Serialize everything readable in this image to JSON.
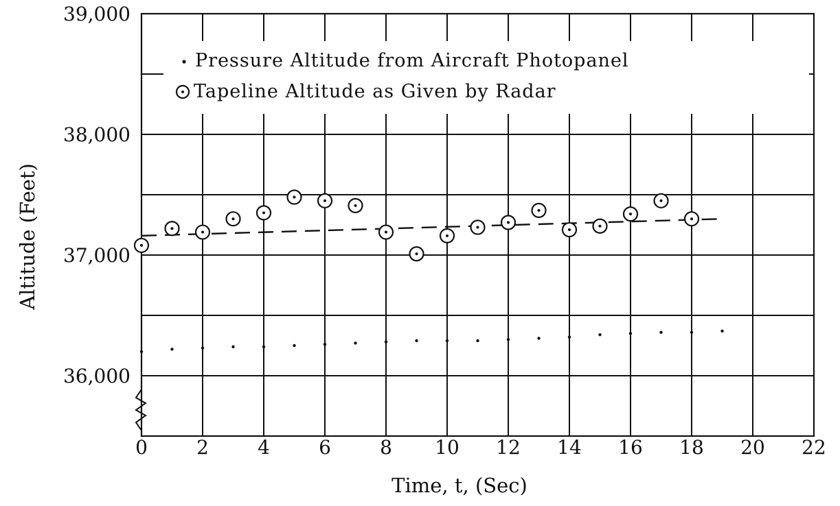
{
  "chart_data": {
    "type": "scatter",
    "xlabel": "Time, t, (Sec)",
    "ylabel": "Altitude (Feet)",
    "xlim": [
      0,
      22
    ],
    "ylim": [
      35500,
      39000
    ],
    "x_ticks": [
      "0",
      "2",
      "4",
      "6",
      "8",
      "10",
      "12",
      "14",
      "16",
      "18",
      "20",
      "22"
    ],
    "y_ticks": [
      "36,000",
      "37,000",
      "38,000",
      "39,000"
    ],
    "grid": true,
    "legend_position": "top",
    "legend": [
      {
        "marker": ".",
        "label": "Pressure Altitude from Aircraft Photopanel"
      },
      {
        "marker": "⊙",
        "label": "Tapeline Altitude as Given by Radar"
      }
    ],
    "series": [
      {
        "name": "Pressure Altitude from Aircraft Photopanel",
        "marker": "dot",
        "x": [
          0,
          1,
          2,
          3,
          4,
          5,
          6,
          7,
          8,
          9,
          10,
          11,
          12,
          13,
          14,
          15,
          16,
          17,
          18,
          19
        ],
        "y": [
          36200,
          36220,
          36230,
          36240,
          36240,
          36250,
          36260,
          36270,
          36280,
          36290,
          36290,
          36290,
          36300,
          36310,
          36320,
          36340,
          36350,
          36360,
          36360,
          36370
        ]
      },
      {
        "name": "Tapeline Altitude as Given by Radar",
        "marker": "circle-dot",
        "x": [
          0,
          1,
          2,
          3,
          4,
          5,
          6,
          7,
          8,
          9,
          10,
          11,
          12,
          13,
          14,
          15,
          16,
          17,
          18
        ],
        "y": [
          37080,
          37220,
          37190,
          37300,
          37350,
          37480,
          37450,
          37410,
          37190,
          37010,
          37160,
          37230,
          37270,
          37370,
          37210,
          37240,
          37340,
          37450,
          37300
        ]
      }
    ],
    "trend_line": {
      "style": "dashed",
      "x": [
        0,
        19
      ],
      "y": [
        37160,
        37300
      ]
    }
  }
}
